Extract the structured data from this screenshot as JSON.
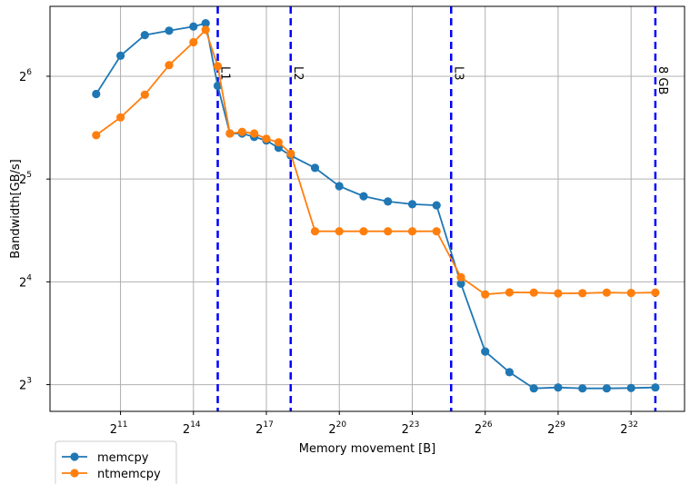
{
  "chart_data": {
    "type": "line",
    "xlabel": "Memory movement [B]",
    "ylabel": "Bandwidth[GB/s]",
    "xscale": "log2",
    "yscale": "log2",
    "x_exponents": [
      10,
      11,
      12,
      13,
      14,
      14.5,
      15,
      15.5,
      16,
      16.5,
      17,
      17.5,
      18,
      19,
      20,
      21,
      22,
      23,
      24,
      25,
      26,
      27,
      28,
      29,
      30,
      31,
      32,
      33
    ],
    "xlim_log2": [
      8.1,
      34.2
    ],
    "ylim_log2": [
      2.74,
      6.68
    ],
    "x_ticks": [
      {
        "base": "2",
        "exp": "11"
      },
      {
        "base": "2",
        "exp": "14"
      },
      {
        "base": "2",
        "exp": "17"
      },
      {
        "base": "2",
        "exp": "20"
      },
      {
        "base": "2",
        "exp": "23"
      },
      {
        "base": "2",
        "exp": "26"
      },
      {
        "base": "2",
        "exp": "29"
      },
      {
        "base": "2",
        "exp": "32"
      }
    ],
    "y_ticks": [
      {
        "base": "2",
        "exp": "3"
      },
      {
        "base": "2",
        "exp": "4"
      },
      {
        "base": "2",
        "exp": "5"
      },
      {
        "base": "2",
        "exp": "6"
      }
    ],
    "grid": true,
    "legend_position": "below-left",
    "series": [
      {
        "name": "memcpy",
        "color": "#1f77b4",
        "values": [
          56.8,
          73.5,
          84.5,
          87.0,
          89.5,
          91.5,
          60.0,
          43.5,
          43.5,
          42.5,
          41.5,
          39.5,
          37.5,
          34.5,
          30.5,
          28.5,
          27.5,
          27.0,
          26.8,
          15.8,
          10.0,
          8.7,
          7.8,
          7.85,
          7.8,
          7.8,
          7.82,
          7.85
        ]
      },
      {
        "name": "ntmemcpy",
        "color": "#ff7f0e",
        "values": [
          43.0,
          48.5,
          56.5,
          69.0,
          80.5,
          87.5,
          68.5,
          43.5,
          44.0,
          43.5,
          42.0,
          41.0,
          38.0,
          22.5,
          22.5,
          22.5,
          22.5,
          22.5,
          22.5,
          16.5,
          14.7,
          14.9,
          14.88,
          14.8,
          14.82,
          14.88,
          14.85,
          14.88
        ]
      }
    ],
    "vlines": [
      {
        "label": "L1",
        "exp": 15,
        "color": "#0000ff"
      },
      {
        "label": "L2",
        "exp": 18,
        "color": "#0000ff"
      },
      {
        "label": "L3",
        "exp": 24.6,
        "color": "#0000ff"
      },
      {
        "label": "8 GB",
        "exp": 33,
        "color": "#0000ff"
      }
    ]
  }
}
